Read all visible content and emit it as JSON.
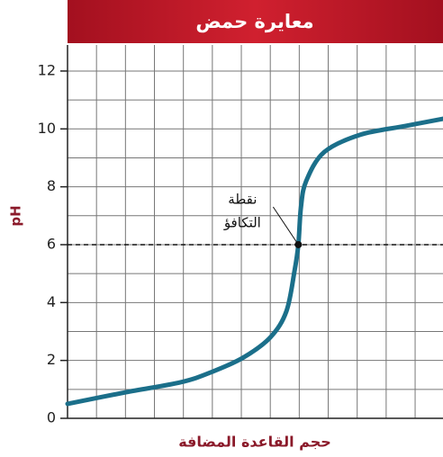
{
  "chart_data": {
    "type": "line",
    "title": "معايرة حمض",
    "x_label": "حجم القاعدة المضافة",
    "y_label": "pH",
    "x": [
      0,
      2.0,
      3.9,
      4.95,
      6.04,
      6.97,
      7.52,
      7.8,
      7.93,
      8.02,
      8.2,
      8.82,
      10.06,
      11.6,
      12.9
    ],
    "series": [
      {
        "color": "#1b6f8a",
        "values": [
          0.5,
          0.9,
          1.25,
          1.6,
          2.1,
          2.8,
          3.7,
          5.1,
          6,
          7.3,
          8.2,
          9.2,
          9.8,
          10.1,
          10.35
        ]
      }
    ],
    "xlim": [
      0,
      12.9
    ],
    "ylim": [
      0,
      12.9
    ],
    "yticks": [
      0,
      2,
      4,
      6,
      8,
      10,
      12
    ],
    "grid": true,
    "annotation": {
      "x": 7.93,
      "y": 6,
      "label": [
        "نقطة",
        "التكافؤ"
      ]
    }
  }
}
